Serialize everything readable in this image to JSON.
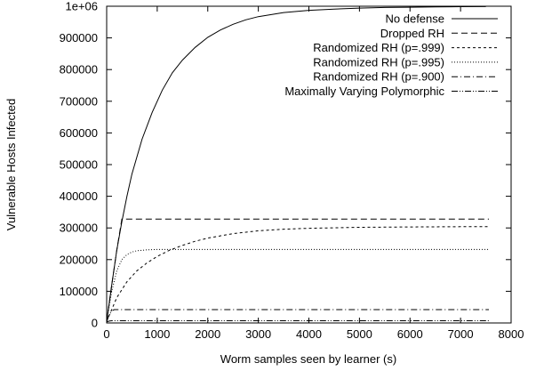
{
  "chart_data": {
    "type": "line",
    "title": "",
    "xlabel": "Worm samples seen by learner (s)",
    "ylabel": "Vulnerable Hosts Infected",
    "xlim": [
      0,
      8000
    ],
    "ylim": [
      0,
      1000000
    ],
    "xticks": [
      0,
      1000,
      2000,
      3000,
      4000,
      5000,
      6000,
      7000,
      8000
    ],
    "yticks": [
      0,
      100000,
      200000,
      300000,
      400000,
      500000,
      600000,
      700000,
      800000,
      900000,
      1000000
    ],
    "ytick_labels": [
      "0",
      "100000",
      "200000",
      "300000",
      "400000",
      "500000",
      "600000",
      "700000",
      "800000",
      "900000",
      "1e+06"
    ],
    "grid": false,
    "legend_position": "top-right",
    "series": [
      {
        "name": "No defense",
        "style": "solid",
        "x": [
          0,
          100,
          200,
          300,
          400,
          500,
          700,
          900,
          1100,
          1300,
          1500,
          1750,
          2000,
          2250,
          2500,
          2750,
          3000,
          3500,
          4000,
          4500,
          5000,
          5500,
          6000,
          6500,
          7000,
          7500
        ],
        "y": [
          5000,
          120000,
          230000,
          320000,
          400000,
          470000,
          580000,
          665000,
          735000,
          790000,
          830000,
          870000,
          902000,
          925000,
          943000,
          957000,
          967000,
          980000,
          987000,
          991000,
          994000,
          996000,
          997000,
          998000,
          998500,
          999000
        ]
      },
      {
        "name": "Dropped RH",
        "style": "dashed",
        "x": [
          0,
          100,
          200,
          300,
          7560
        ],
        "y": [
          5000,
          120000,
          230000,
          328000,
          328000
        ]
      },
      {
        "name": "Randomized RH (p=.999)",
        "style": "short-dashed",
        "x": [
          0,
          200,
          400,
          600,
          800,
          1000,
          1250,
          1500,
          1750,
          2000,
          2500,
          3000,
          3500,
          4000,
          5000,
          6000,
          7000,
          7560
        ],
        "y": [
          5000,
          80000,
          130000,
          165000,
          190000,
          210000,
          230000,
          245000,
          258000,
          268000,
          282000,
          291000,
          296000,
          299000,
          302000,
          303000,
          304000,
          304000
        ]
      },
      {
        "name": "Randomized RH (p=.995)",
        "style": "dotted",
        "x": [
          0,
          100,
          200,
          300,
          400,
          500,
          600,
          800,
          1000,
          1200,
          7560
        ],
        "y": [
          5000,
          100000,
          165000,
          200000,
          216000,
          224000,
          228000,
          231000,
          232000,
          232000,
          232000
        ]
      },
      {
        "name": "Randomized RH (p=.900)",
        "style": "dash-dot",
        "x": [
          0,
          50,
          100,
          150,
          200,
          7560
        ],
        "y": [
          5000,
          25000,
          38000,
          42000,
          42000,
          42000
        ]
      },
      {
        "name": "Maximally Varying Polymorphic",
        "style": "dash-dot-dot",
        "x": [
          0,
          50,
          100,
          7560
        ],
        "y": [
          3000,
          6000,
          7000,
          7000
        ]
      }
    ]
  }
}
